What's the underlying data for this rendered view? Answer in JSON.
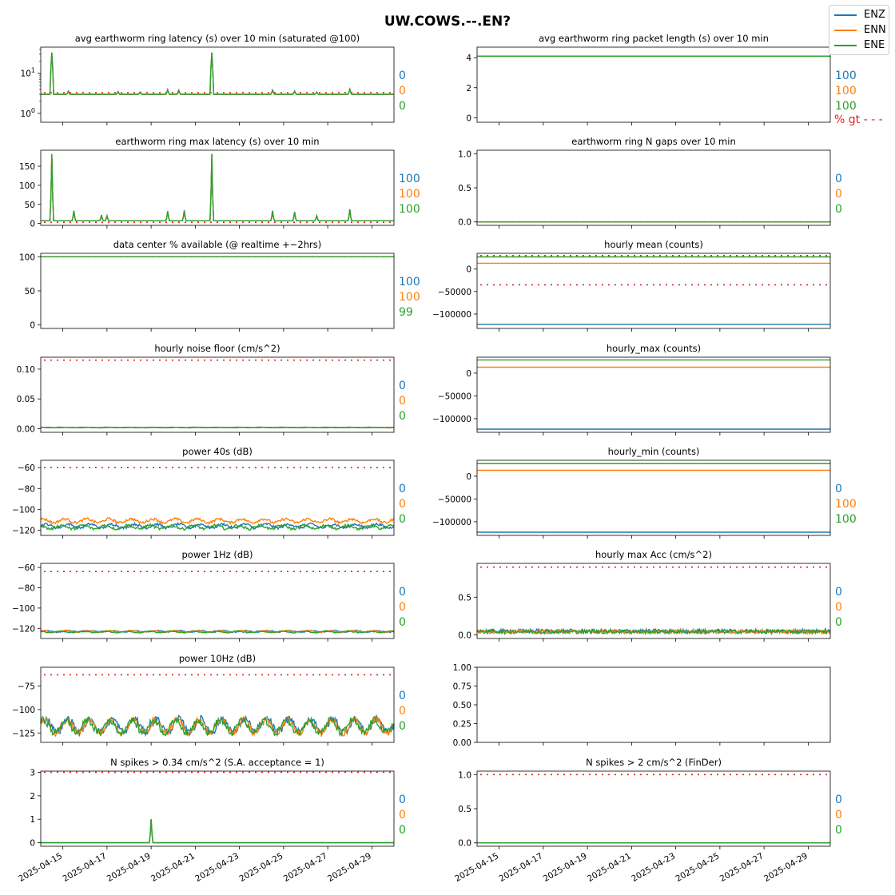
{
  "figure": {
    "suptitle": "UW.COWS.--.EN?",
    "colors": {
      "ENZ": "#1f77b4",
      "ENN": "#ff7f0e",
      "ENE": "#2ca02c",
      "threshold": "#d62728"
    },
    "legend": [
      "ENZ",
      "ENN",
      "ENE"
    ],
    "x_tick_labels": [
      "2025-04-15",
      "2025-04-17",
      "2025-04-19",
      "2025-04-21",
      "2025-04-23",
      "2025-04-25",
      "2025-04-27",
      "2025-04-29"
    ]
  },
  "chart_data": [
    {
      "id": "p1",
      "type": "line",
      "title": "avg earthworm ring latency (s)   over 10 min (saturated @100)",
      "yscale": "log",
      "ylim": [
        0.6,
        45
      ],
      "yticks": [
        1,
        10
      ],
      "ytick_labels": [
        "10^0",
        "10^1"
      ],
      "threshold": 3.3,
      "series": [
        {
          "name": "ENZ",
          "baseline": 3.0,
          "pct": "0"
        },
        {
          "name": "ENN",
          "baseline": 3.0,
          "pct": "0"
        },
        {
          "name": "ENE",
          "baseline": 3.0,
          "pct": "0"
        }
      ],
      "spikes": [
        {
          "x": "2025-04-14T12:00",
          "y": 33
        },
        {
          "x": "2025-04-15T06:00",
          "y": 3.6
        },
        {
          "x": "2025-04-17T12:00",
          "y": 3.5
        },
        {
          "x": "2025-04-18T12:00",
          "y": 3.4
        },
        {
          "x": "2025-04-19T18:00",
          "y": 3.9
        },
        {
          "x": "2025-04-20T06:00",
          "y": 3.8
        },
        {
          "x": "2025-04-21T18:00",
          "y": 33
        },
        {
          "x": "2025-04-24T12:00",
          "y": 3.8
        },
        {
          "x": "2025-04-25T12:00",
          "y": 3.6
        },
        {
          "x": "2025-04-26T12:00",
          "y": 3.4
        },
        {
          "x": "2025-04-28T00:00",
          "y": 4.0
        }
      ]
    },
    {
      "id": "p2",
      "type": "line",
      "title": "avg earthworm ring packet length (s)   over 10 min",
      "ylim": [
        -0.3,
        4.7
      ],
      "yticks": [
        0,
        2,
        4
      ],
      "ytick_labels": [
        "0",
        "2",
        "4"
      ],
      "series": [
        {
          "name": "ENZ",
          "baseline": 4.1,
          "pct": "100"
        },
        {
          "name": "ENN",
          "baseline": 4.1,
          "pct": "100"
        },
        {
          "name": "ENE",
          "baseline": 4.1,
          "pct": "100"
        }
      ],
      "extra_label": "% gt - - -"
    },
    {
      "id": "p3",
      "type": "line",
      "title": "earthworm ring max latency (s)   over 10 min",
      "ylim": [
        -5,
        192
      ],
      "threshold": 3,
      "yticks": [
        0,
        50,
        100,
        150
      ],
      "ytick_labels": [
        "0",
        "50",
        "100",
        "150"
      ],
      "series": [
        {
          "name": "ENZ",
          "baseline": 7,
          "pct": "100"
        },
        {
          "name": "ENN",
          "baseline": 7,
          "pct": "100"
        },
        {
          "name": "ENE",
          "baseline": 7,
          "pct": "100"
        }
      ],
      "spikes": [
        {
          "x": "2025-04-14T12:00",
          "y": 182
        },
        {
          "x": "2025-04-15T12:00",
          "y": 33
        },
        {
          "x": "2025-04-16T18:00",
          "y": 22
        },
        {
          "x": "2025-04-17T00:00",
          "y": 20
        },
        {
          "x": "2025-04-19T18:00",
          "y": 32
        },
        {
          "x": "2025-04-20T12:00",
          "y": 34
        },
        {
          "x": "2025-04-21T18:00",
          "y": 182
        },
        {
          "x": "2025-04-24T12:00",
          "y": 33
        },
        {
          "x": "2025-04-25T12:00",
          "y": 30
        },
        {
          "x": "2025-04-26T12:00",
          "y": 20
        },
        {
          "x": "2025-04-28T00:00",
          "y": 37
        }
      ]
    },
    {
      "id": "p4",
      "type": "line",
      "title": "earthworm ring N gaps   over 10 min",
      "ylim": [
        -0.05,
        1.05
      ],
      "threshold": 0,
      "yticks": [
        0,
        0.5,
        1
      ],
      "ytick_labels": [
        "0.0",
        "0.5",
        "1.0"
      ],
      "series": [
        {
          "name": "ENZ",
          "baseline": 0,
          "pct": "0"
        },
        {
          "name": "ENN",
          "baseline": 0,
          "pct": "0"
        },
        {
          "name": "ENE",
          "baseline": 0,
          "pct": "0"
        }
      ]
    },
    {
      "id": "p5",
      "type": "line",
      "title": "data center % available (@ realtime +~2hrs)",
      "ylim": [
        -5,
        105
      ],
      "threshold": 100,
      "yticks": [
        0,
        50,
        100
      ],
      "ytick_labels": [
        "0",
        "50",
        "100"
      ],
      "series": [
        {
          "name": "ENZ",
          "baseline": 100,
          "pct": "100"
        },
        {
          "name": "ENN",
          "baseline": 100,
          "pct": "100"
        },
        {
          "name": "ENE",
          "baseline": 100,
          "pct": "99"
        }
      ]
    },
    {
      "id": "p6",
      "type": "line",
      "title": "hourly mean (counts)",
      "ylim": [
        -132000,
        35000
      ],
      "thresholds": [
        30000,
        -35000
      ],
      "yticks": [
        -100000,
        -50000,
        0
      ],
      "ytick_labels": [
        "−100000",
        "−50000",
        "0"
      ],
      "series": [
        {
          "name": "ENZ",
          "baseline": -123000,
          "pct": ""
        },
        {
          "name": "ENN",
          "baseline": 13000,
          "pct": ""
        },
        {
          "name": "ENE",
          "baseline": 27000,
          "pct": ""
        }
      ]
    },
    {
      "id": "p7",
      "type": "line",
      "title": "hourly noise floor (cm/s^2)",
      "ylim": [
        -0.006,
        0.12
      ],
      "threshold": 0.115,
      "yticks": [
        0,
        0.05,
        0.1
      ],
      "ytick_labels": [
        "0.00",
        "0.05",
        "0.10"
      ],
      "series": [
        {
          "name": "ENZ",
          "baseline": 0.002,
          "pct": "0"
        },
        {
          "name": "ENN",
          "baseline": 0.002,
          "pct": "0"
        },
        {
          "name": "ENE",
          "baseline": 0.0022,
          "pct": "0"
        }
      ]
    },
    {
      "id": "p8",
      "type": "line",
      "title": "hourly_max (counts)",
      "ylim": [
        -130000,
        35000
      ],
      "yticks": [
        -100000,
        -50000,
        0
      ],
      "ytick_labels": [
        "−100000",
        "−50000",
        "0"
      ],
      "series": [
        {
          "name": "ENZ",
          "baseline": -123000,
          "pct": ""
        },
        {
          "name": "ENN",
          "baseline": 13000,
          "pct": ""
        },
        {
          "name": "ENE",
          "baseline": 29000,
          "pct": ""
        }
      ]
    },
    {
      "id": "p9",
      "type": "line",
      "title": "power 40s (dB)",
      "ylim": [
        -125,
        -53
      ],
      "threshold": -60,
      "yticks": [
        -120,
        -100,
        -80,
        -60
      ],
      "ytick_labels": [
        "−120",
        "−100",
        "−80",
        "−60"
      ],
      "series": [
        {
          "name": "ENZ",
          "baseline": -116,
          "pct": "0"
        },
        {
          "name": "ENN",
          "baseline": -111,
          "pct": "0"
        },
        {
          "name": "ENE",
          "baseline": -117,
          "pct": "0"
        }
      ]
    },
    {
      "id": "p10",
      "type": "line",
      "title": "hourly_min (counts)",
      "ylim": [
        -130000,
        35000
      ],
      "yticks": [
        -100000,
        -50000,
        0
      ],
      "ytick_labels": [
        "−100000",
        "−50000",
        "0"
      ],
      "series": [
        {
          "name": "ENZ",
          "baseline": -123000,
          "pct": "0"
        },
        {
          "name": "ENN",
          "baseline": 13000,
          "pct": "100"
        },
        {
          "name": "ENE",
          "baseline": 28000,
          "pct": "100"
        }
      ]
    },
    {
      "id": "p11",
      "type": "line",
      "title": "power 1Hz (dB)",
      "ylim": [
        -130,
        -56
      ],
      "threshold": -64,
      "yticks": [
        -120,
        -100,
        -80,
        -60
      ],
      "ytick_labels": [
        "−120",
        "−100",
        "−80",
        "−60"
      ],
      "series": [
        {
          "name": "ENZ",
          "baseline": -123,
          "pct": "0"
        },
        {
          "name": "ENN",
          "baseline": -123,
          "pct": "0"
        },
        {
          "name": "ENE",
          "baseline": -123.5,
          "pct": "0"
        }
      ]
    },
    {
      "id": "p12",
      "type": "line",
      "title": "hourly max Acc (cm/s^2)",
      "ylim": [
        -0.05,
        0.95
      ],
      "threshold": 0.9,
      "yticks": [
        0,
        0.5
      ],
      "ytick_labels": [
        "0.0",
        "0.5"
      ],
      "series": [
        {
          "name": "ENZ",
          "baseline": 0.04,
          "pct": "0"
        },
        {
          "name": "ENN",
          "baseline": 0.03,
          "pct": "0"
        },
        {
          "name": "ENE",
          "baseline": 0.03,
          "pct": "0"
        }
      ]
    },
    {
      "id": "p13",
      "type": "line",
      "title": "power 10Hz (dB)",
      "ylim": [
        -135,
        -55
      ],
      "threshold": -63,
      "yticks": [
        -125,
        -100,
        -75
      ],
      "ytick_labels": [
        "−125",
        "−100",
        "−75"
      ],
      "series": [
        {
          "name": "ENZ",
          "baseline": -117,
          "pct": "0"
        },
        {
          "name": "ENN",
          "baseline": -118,
          "pct": "0"
        },
        {
          "name": "ENE",
          "baseline": -118,
          "pct": "0"
        }
      ]
    },
    {
      "id": "p14",
      "type": "empty",
      "title": "",
      "ylim": [
        0,
        1
      ],
      "yticks": [
        0,
        0.25,
        0.5,
        0.75,
        1
      ],
      "ytick_labels": [
        "0.00",
        "0.25",
        "0.50",
        "0.75",
        "1.00"
      ],
      "series": []
    },
    {
      "id": "p15",
      "type": "line",
      "title": "N spikes > 0.34 cm/s^2 (S.A. acceptance = 1)",
      "ylim": [
        -0.15,
        3.05
      ],
      "threshold": 3,
      "yticks": [
        0,
        1,
        2,
        3
      ],
      "ytick_labels": [
        "0",
        "1",
        "2",
        "3"
      ],
      "series": [
        {
          "name": "ENZ",
          "baseline": 0,
          "pct": "0"
        },
        {
          "name": "ENN",
          "baseline": 0,
          "pct": "0"
        },
        {
          "name": "ENE",
          "baseline": 0,
          "pct": "0"
        }
      ],
      "spikes": [
        {
          "x": "2025-04-19T00:00",
          "y": 1
        }
      ]
    },
    {
      "id": "p16",
      "type": "line",
      "title": "N spikes > 2 cm/s^2 (FinDer)",
      "ylim": [
        -0.05,
        1.05
      ],
      "threshold": 1,
      "yticks": [
        0,
        0.5,
        1
      ],
      "ytick_labels": [
        "0.0",
        "0.5",
        "1.0"
      ],
      "series": [
        {
          "name": "ENZ",
          "baseline": 0,
          "pct": "0"
        },
        {
          "name": "ENN",
          "baseline": 0,
          "pct": "0"
        },
        {
          "name": "ENE",
          "baseline": 0,
          "pct": "0"
        }
      ]
    }
  ]
}
